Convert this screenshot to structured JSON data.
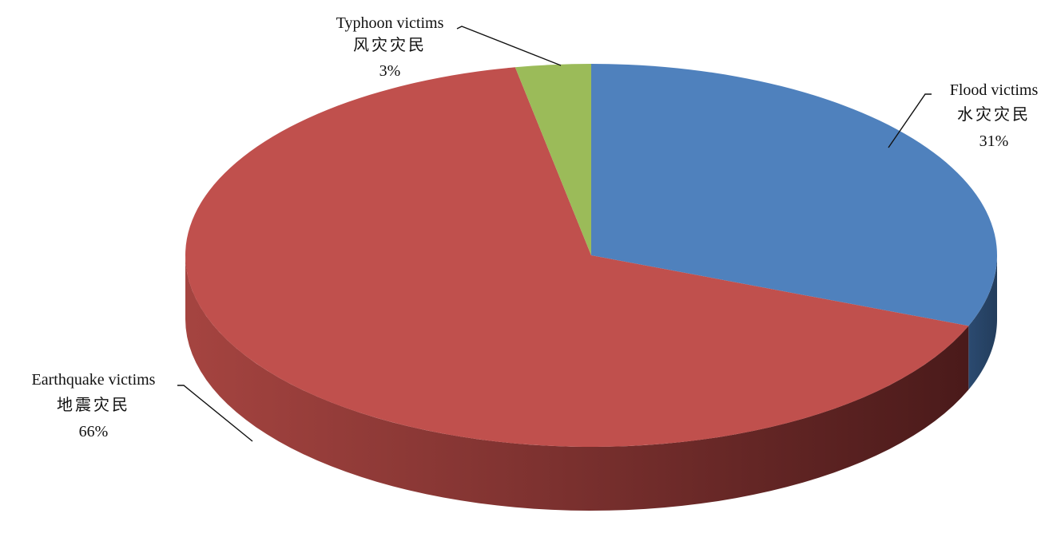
{
  "chart_data": {
    "type": "pie",
    "variant": "3d",
    "title": "",
    "start": "12 o'clock, clockwise",
    "slices": [
      {
        "name": "Flood victims",
        "name_cn": "水灾灾民",
        "value": 31,
        "label": "31%",
        "color": "#4f81bd"
      },
      {
        "name": "Earthquake victims",
        "name_cn": "地震灾民",
        "value": 66,
        "label": "66%",
        "color": "#c0504d"
      },
      {
        "name": "Typhoon victims",
        "name_cn": "风灾灾民",
        "value": 3,
        "label": "3%",
        "color": "#9bbb59"
      }
    ],
    "legend": "none",
    "data_labels": "outside with leader lines"
  }
}
